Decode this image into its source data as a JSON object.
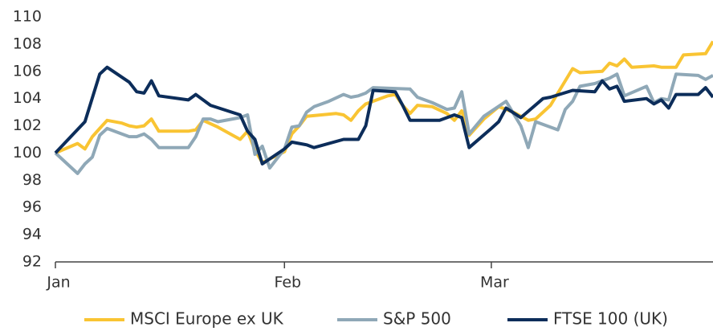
{
  "chart_data": {
    "type": "line",
    "xlim": [
      0,
      89
    ],
    "xticks": [
      {
        "value": 0,
        "label": "Jan"
      },
      {
        "value": 31,
        "label": "Feb"
      },
      {
        "value": 59,
        "label": "Mar"
      }
    ],
    "ylim": [
      92,
      110
    ],
    "yticks": [
      92,
      94,
      96,
      98,
      100,
      102,
      104,
      106,
      108,
      110
    ],
    "grid": false,
    "legend": "bottom",
    "series": [
      {
        "name": "MSCI Europe ex UK",
        "color": "#f9c433",
        "x": [
          0,
          3,
          4,
          5,
          6,
          7,
          9,
          10,
          11,
          12,
          13,
          14,
          18,
          19,
          20,
          22,
          25,
          26,
          27,
          28,
          31,
          32,
          33,
          34,
          36,
          38,
          39,
          40,
          41,
          42,
          45,
          46,
          47,
          48,
          49,
          51,
          53,
          54,
          55,
          56,
          58,
          60,
          62,
          64,
          65,
          67,
          69,
          70,
          71,
          74,
          75,
          76,
          77,
          78,
          81,
          82,
          84,
          85,
          88,
          89
        ],
        "values": [
          100,
          100.7,
          100.3,
          101.2,
          101.8,
          102.4,
          102.2,
          102.0,
          101.9,
          102.0,
          102.5,
          101.6,
          101.6,
          101.7,
          102.4,
          101.9,
          101.0,
          101.6,
          100.2,
          99.3,
          100.1,
          101.4,
          102.0,
          102.7,
          102.8,
          102.9,
          102.8,
          102.4,
          103.1,
          103.6,
          104.2,
          104.3,
          103.5,
          102.9,
          103.5,
          103.4,
          102.9,
          102.4,
          103.1,
          101.3,
          102.5,
          103.4,
          103.0,
          102.4,
          102.5,
          103.5,
          105.3,
          106.2,
          105.9,
          106.0,
          106.6,
          106.4,
          106.9,
          106.3,
          106.4,
          106.3,
          106.3,
          107.2,
          107.3,
          108.2
        ]
      },
      {
        "name": "S&P 500",
        "color": "#8fa8b7",
        "x": [
          0,
          3,
          4,
          5,
          6,
          7,
          9,
          10,
          11,
          12,
          13,
          14,
          18,
          19,
          20,
          21,
          22,
          25,
          26,
          27,
          28,
          29,
          31,
          32,
          33,
          34,
          35,
          37,
          39,
          40,
          41,
          42,
          43,
          48,
          49,
          51,
          53,
          54,
          55,
          56,
          58,
          61,
          63,
          64,
          65,
          67,
          68,
          69,
          70,
          71,
          73,
          75,
          76,
          77,
          80,
          81,
          82,
          83,
          84,
          87,
          88,
          89
        ],
        "values": [
          100,
          98.5,
          99.2,
          99.7,
          101.3,
          101.8,
          101.4,
          101.2,
          101.2,
          101.4,
          101.0,
          100.4,
          100.4,
          101.2,
          102.5,
          102.5,
          102.3,
          102.6,
          102.8,
          99.9,
          100.5,
          98.9,
          100.3,
          101.9,
          102.0,
          103.0,
          103.4,
          103.8,
          104.3,
          104.1,
          104.2,
          104.4,
          104.8,
          104.7,
          104.1,
          103.7,
          103.2,
          103.3,
          104.5,
          101.4,
          102.7,
          103.8,
          102.0,
          100.4,
          102.3,
          101.9,
          101.7,
          103.2,
          103.8,
          104.9,
          105.1,
          105.5,
          105.8,
          104.2,
          104.9,
          103.7,
          104.0,
          103.9,
          105.8,
          105.7,
          105.4,
          105.7
        ]
      },
      {
        "name": "FTSE 100 (UK)",
        "color": "#0c2d5a",
        "x": [
          0,
          4,
          6,
          7,
          10,
          11,
          12,
          13,
          14,
          18,
          19,
          21,
          25,
          26,
          27,
          28,
          31,
          32,
          34,
          35,
          39,
          40,
          41,
          42,
          43,
          46,
          47,
          48,
          52,
          54,
          55,
          56,
          59,
          60,
          61,
          63,
          66,
          67,
          70,
          73,
          74,
          75,
          76,
          77,
          80,
          81,
          82,
          83,
          84,
          87,
          88,
          89
        ],
        "values": [
          100,
          102.3,
          105.8,
          106.3,
          105.2,
          104.5,
          104.4,
          105.3,
          104.2,
          103.9,
          104.3,
          103.5,
          102.8,
          101.6,
          101.0,
          99.2,
          100.3,
          100.8,
          100.6,
          100.4,
          101.0,
          101.0,
          101.0,
          102.0,
          104.6,
          104.5,
          103.5,
          102.4,
          102.4,
          102.8,
          102.6,
          100.4,
          101.8,
          102.3,
          103.3,
          102.6,
          104.0,
          104.1,
          104.6,
          104.5,
          105.3,
          104.7,
          104.9,
          103.8,
          104.0,
          103.6,
          103.9,
          103.3,
          104.3,
          104.3,
          104.8,
          104.1
        ]
      }
    ]
  }
}
